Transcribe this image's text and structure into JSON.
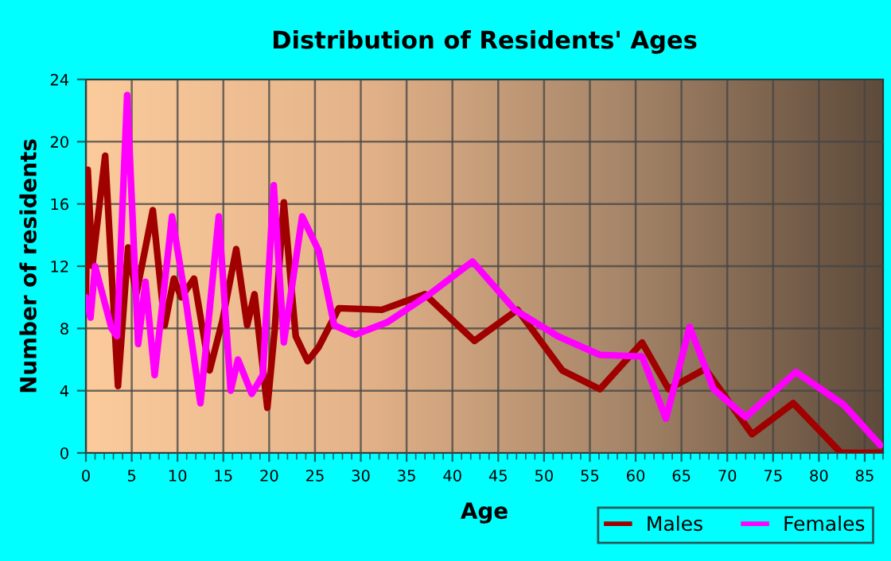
{
  "chart_data": {
    "type": "line",
    "title": "Distribution of Residents' Ages",
    "xlabel": "Age",
    "ylabel": "Number of residents",
    "xlim": [
      0,
      87
    ],
    "ylim": [
      0,
      24
    ],
    "xticks": [
      0,
      5,
      10,
      15,
      20,
      25,
      30,
      35,
      40,
      45,
      50,
      55,
      60,
      65,
      70,
      75,
      80,
      85
    ],
    "yticks": [
      0,
      4,
      8,
      12,
      16,
      20,
      24
    ],
    "grid": true,
    "legend": "bottom right",
    "marker": "none",
    "line_style": "solid",
    "series": [
      {
        "name": "Males",
        "color": "#a00000",
        "x": [
          0,
          0.2,
          0.7,
          2.1,
          3.5,
          4.6,
          5.5,
          7.3,
          8.6,
          9.6,
          10.4,
          11.8,
          13.5,
          14.9,
          16.4,
          17.6,
          18.4,
          19.8,
          20.6,
          21.6,
          22.9,
          24.2,
          25.4,
          27.6,
          32.3,
          37,
          42.4,
          47.1,
          52,
          56.1,
          60.7,
          63.6,
          67.6,
          72.7,
          77.2,
          82.4,
          86.7
        ],
        "values": [
          10,
          18.2,
          12,
          19.1,
          4.3,
          13.2,
          10.2,
          15.6,
          8.2,
          11.2,
          10,
          11.2,
          5.3,
          8.5,
          13.1,
          8.2,
          10.2,
          2.9,
          7.9,
          16.1,
          7.5,
          5.9,
          6.8,
          9.3,
          9.2,
          10.2,
          7.2,
          9.2,
          5.3,
          4.1,
          7.1,
          4.1,
          5.4,
          1.2,
          3.2,
          0,
          0
        ]
      },
      {
        "name": "Females",
        "color": "#ff00ff",
        "x": [
          0,
          0.5,
          1,
          2.8,
          3.4,
          4.5,
          5.7,
          6.5,
          7.5,
          9.4,
          10.9,
          12.5,
          14.5,
          15.8,
          16.6,
          18.1,
          19.3,
          20.5,
          21.6,
          23.6,
          25.4,
          27.1,
          29.4,
          32.9,
          37.5,
          42.2,
          46.8,
          51.5,
          56.1,
          60.7,
          63.3,
          65.9,
          68.5,
          72,
          77.5,
          82.7,
          86.7
        ],
        "values": [
          10,
          8.7,
          12,
          8,
          7.5,
          23,
          7,
          11,
          5,
          15.2,
          9.8,
          3.2,
          15.2,
          4,
          6,
          3.8,
          5,
          17.2,
          7.1,
          15.2,
          13,
          8.2,
          7.6,
          8.4,
          10.2,
          12.3,
          9.2,
          7.5,
          6.3,
          6.2,
          2.2,
          8.1,
          4.1,
          2.3,
          5.2,
          3.1,
          0.5
        ]
      }
    ]
  }
}
